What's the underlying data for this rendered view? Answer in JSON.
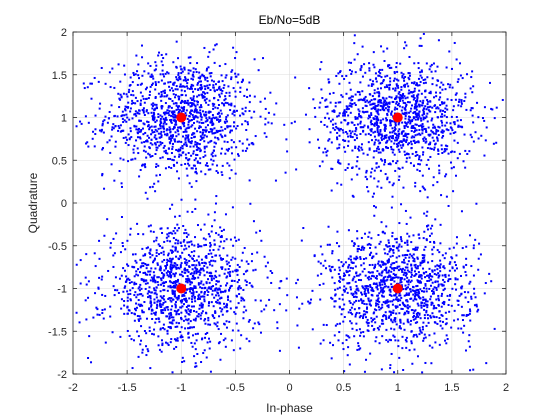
{
  "chart_data": {
    "type": "scatter",
    "title": "Eb/No=5dB",
    "xlabel": "In-phase",
    "ylabel": "Quadrature",
    "xlim": [
      -2,
      2
    ],
    "ylim": [
      -2,
      2
    ],
    "xticks": [
      "-2",
      "-1.5",
      "-1",
      "-0.5",
      "0",
      "0.5",
      "1",
      "1.5",
      "2"
    ],
    "yticks": [
      "2",
      "1.5",
      "1",
      "0.5",
      "0",
      "-0.5",
      "-1",
      "-1.5",
      "-2"
    ],
    "grid": true,
    "series": [
      {
        "role": "received-symbols",
        "marker": "dot",
        "color": "#0000ff",
        "point_count_per_cluster": 1200,
        "noise_std": 0.35,
        "centers": [
          [
            -1,
            1
          ],
          [
            1,
            1
          ],
          [
            -1,
            -1
          ],
          [
            1,
            -1
          ]
        ]
      },
      {
        "role": "constellation-points",
        "marker": "filled-circle",
        "color": "#ff0000",
        "points": [
          [
            -1,
            1
          ],
          [
            1,
            1
          ],
          [
            -1,
            -1
          ],
          [
            1,
            -1
          ]
        ]
      }
    ]
  }
}
